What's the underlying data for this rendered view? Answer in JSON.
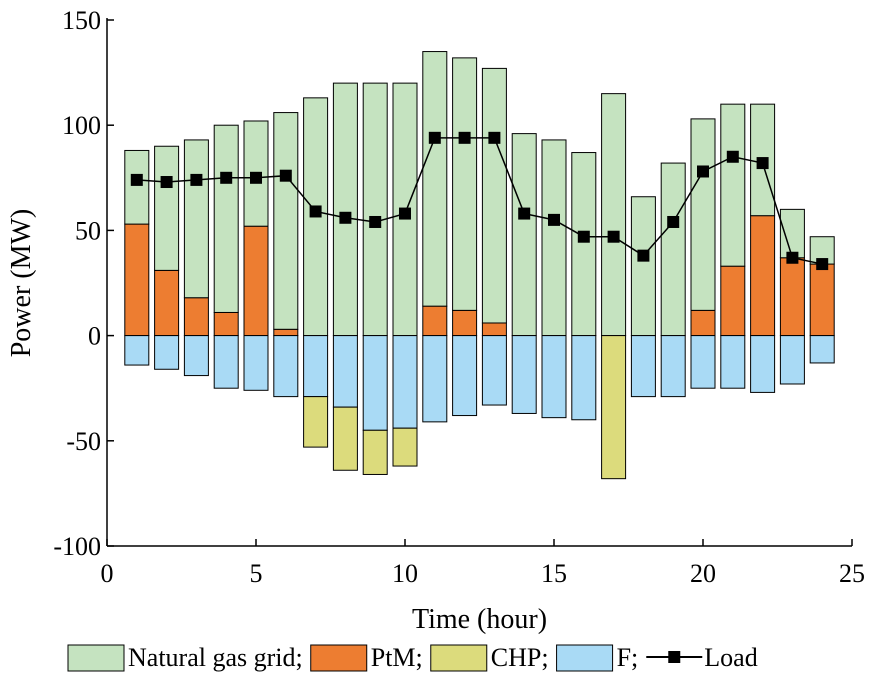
{
  "chart_data": {
    "type": "bar",
    "xlabel": "Time (hour)",
    "ylabel": "Power (MW)",
    "xlim": [
      0,
      25
    ],
    "ylim": [
      -100,
      150
    ],
    "xticks": [
      0,
      5,
      10,
      15,
      20,
      25
    ],
    "yticks": [
      -100,
      -50,
      0,
      50,
      100,
      150
    ],
    "x": [
      1,
      2,
      3,
      4,
      5,
      6,
      7,
      8,
      9,
      10,
      11,
      12,
      13,
      14,
      15,
      16,
      17,
      18,
      19,
      20,
      21,
      22,
      23,
      24
    ],
    "stacking": "positive series stack upward from 0; negative series stack downward from 0",
    "series": [
      {
        "name": "PtM",
        "color": "#ED7D31",
        "kind": "bar",
        "values": [
          53,
          31,
          18,
          11,
          52,
          3,
          0,
          0,
          0,
          0,
          14,
          12,
          6,
          0,
          0,
          0,
          0,
          0,
          0,
          12,
          33,
          57,
          37,
          34
        ]
      },
      {
        "name": "Natural gas grid",
        "color": "#C5E3C0",
        "kind": "bar",
        "values": [
          35,
          59,
          75,
          89,
          50,
          103,
          113,
          120,
          120,
          120,
          121,
          120,
          121,
          96,
          93,
          87,
          115,
          66,
          82,
          91,
          77,
          53,
          23,
          13
        ]
      },
      {
        "name": "F",
        "color": "#A9DAF5",
        "kind": "bar",
        "values": [
          -14,
          -16,
          -19,
          -25,
          -26,
          -29,
          -29,
          -34,
          -45,
          -44,
          -41,
          -38,
          -33,
          -37,
          -39,
          -40,
          0,
          -29,
          -29,
          -25,
          -25,
          -27,
          -23,
          -13
        ]
      },
      {
        "name": "CHP",
        "color": "#DCDB7C",
        "kind": "bar",
        "values": [
          0,
          0,
          0,
          0,
          0,
          0,
          -24,
          -30,
          -21,
          -18,
          0,
          0,
          0,
          0,
          0,
          0,
          -68,
          0,
          0,
          0,
          0,
          0,
          0,
          0
        ]
      },
      {
        "name": "Load",
        "color": "#000000",
        "kind": "line",
        "values": [
          74,
          73,
          74,
          75,
          75,
          76,
          59,
          56,
          54,
          58,
          94,
          94,
          94,
          58,
          55,
          47,
          47,
          38,
          54,
          78,
          85,
          82,
          37,
          34
        ]
      }
    ],
    "legend": {
      "position": "bottom",
      "entries": [
        {
          "label": "Natural gas grid;",
          "series": "Natural gas grid"
        },
        {
          "label": "PtM;",
          "series": "PtM"
        },
        {
          "label": "CHP;",
          "series": "CHP"
        },
        {
          "label": "F;",
          "series": "F"
        },
        {
          "label": "Load",
          "series": "Load"
        }
      ]
    }
  }
}
